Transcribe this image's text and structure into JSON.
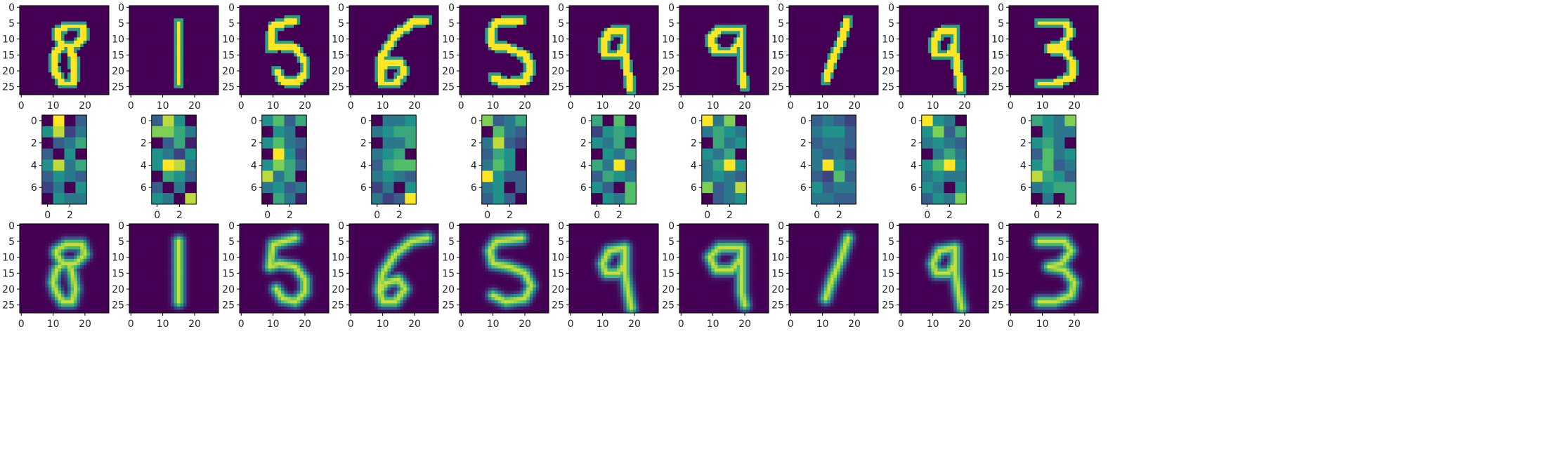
{
  "figure": {
    "title": "",
    "rows": [
      "original-images",
      "latent-codes",
      "reconstructed-images"
    ]
  },
  "colors": {
    "viridis_stops": [
      "#440154",
      "#3b528b",
      "#21918c",
      "#5ec962",
      "#fde725"
    ],
    "background": "#ffffff",
    "text": "#262626"
  },
  "chart_data": [
    {
      "type": "heatmap",
      "row": "original",
      "count": 10,
      "image_shape": [
        28,
        28
      ],
      "digits": [
        "8",
        "1",
        "5",
        "6",
        "5",
        "9",
        "9",
        "1",
        "9",
        "3"
      ],
      "xlim": [
        0,
        27
      ],
      "ylim": [
        27,
        0
      ],
      "x_ticks": [
        0,
        10,
        20
      ],
      "x_tick_labels": [
        "0",
        "10",
        "20"
      ],
      "y_ticks": [
        0,
        5,
        10,
        15,
        20,
        25
      ],
      "y_tick_labels": [
        "0",
        "5",
        "10",
        "15",
        "20",
        "25"
      ],
      "colormap": "viridis"
    },
    {
      "type": "heatmap",
      "row": "latent",
      "count": 10,
      "image_shape": [
        8,
        4
      ],
      "xlim": [
        0,
        3
      ],
      "ylim": [
        7,
        0
      ],
      "x_ticks": [
        0,
        2
      ],
      "x_tick_labels": [
        "0",
        "2"
      ],
      "y_ticks": [
        0,
        2,
        4,
        6
      ],
      "y_tick_labels": [
        "0",
        "2",
        "4",
        "6"
      ],
      "colormap": "viridis",
      "values": [
        [
          [
            0.0,
            1.0,
            0.0,
            0.3
          ],
          [
            0.5,
            0.9,
            0.2,
            0.4
          ],
          [
            0.0,
            0.3,
            0.4,
            0.6
          ],
          [
            0.3,
            0.0,
            0.5,
            0.0
          ],
          [
            0.5,
            0.9,
            0.4,
            0.6
          ],
          [
            0.3,
            0.5,
            0.4,
            0.3
          ],
          [
            0.2,
            0.4,
            0.0,
            0.5
          ],
          [
            0.0,
            0.5,
            0.4,
            0.4
          ]
        ],
        [
          [
            0.3,
            0.9,
            0.5,
            0.0
          ],
          [
            0.8,
            0.8,
            0.6,
            0.4
          ],
          [
            0.0,
            0.3,
            0.6,
            0.1
          ],
          [
            0.5,
            0.4,
            0.2,
            0.5
          ],
          [
            0.5,
            1.0,
            0.9,
            0.4
          ],
          [
            0.0,
            0.6,
            0.5,
            0.3
          ],
          [
            0.3,
            0.0,
            0.4,
            0.0
          ],
          [
            0.5,
            0.4,
            0.0,
            0.9
          ]
        ],
        [
          [
            0.5,
            0.7,
            0.3,
            0.6
          ],
          [
            0.0,
            0.5,
            0.4,
            0.0
          ],
          [
            0.5,
            0.7,
            0.4,
            0.3
          ],
          [
            0.0,
            1.0,
            0.5,
            0.2
          ],
          [
            0.5,
            0.8,
            0.6,
            0.3
          ],
          [
            0.9,
            0.4,
            0.6,
            0.0
          ],
          [
            0.4,
            0.5,
            0.3,
            0.4
          ],
          [
            0.0,
            0.6,
            0.4,
            0.1
          ]
        ],
        [
          [
            0.0,
            0.4,
            0.4,
            0.5
          ],
          [
            0.4,
            0.5,
            0.6,
            0.6
          ],
          [
            0.0,
            0.4,
            0.4,
            0.6
          ],
          [
            0.4,
            0.5,
            0.6,
            0.0
          ],
          [
            0.3,
            0.6,
            0.7,
            0.7
          ],
          [
            0.4,
            0.5,
            0.4,
            0.3
          ],
          [
            0.2,
            0.4,
            0.0,
            0.5
          ],
          [
            0.4,
            0.2,
            0.3,
            1.0
          ]
        ],
        [
          [
            0.8,
            0.3,
            0.4,
            0.6
          ],
          [
            0.0,
            0.7,
            0.4,
            0.3
          ],
          [
            0.4,
            0.9,
            0.3,
            0.2
          ],
          [
            0.3,
            0.6,
            0.5,
            0.0
          ],
          [
            0.4,
            0.7,
            0.5,
            0.0
          ],
          [
            1.0,
            0.5,
            0.3,
            0.3
          ],
          [
            0.4,
            0.5,
            0.0,
            0.3
          ],
          [
            0.3,
            0.5,
            0.3,
            0.0
          ]
        ],
        [
          [
            0.6,
            0.0,
            0.7,
            0.0
          ],
          [
            0.2,
            0.5,
            0.6,
            0.5
          ],
          [
            0.5,
            0.4,
            0.6,
            0.0
          ],
          [
            0.0,
            0.5,
            0.4,
            0.6
          ],
          [
            0.6,
            0.4,
            1.0,
            0.3
          ],
          [
            0.3,
            0.6,
            0.5,
            0.4
          ],
          [
            0.5,
            0.3,
            0.0,
            0.7
          ],
          [
            0.0,
            0.5,
            0.4,
            0.7
          ]
        ],
        [
          [
            1.0,
            0.4,
            0.8,
            0.0
          ],
          [
            0.4,
            0.6,
            0.5,
            0.4
          ],
          [
            0.0,
            0.6,
            0.4,
            0.5
          ],
          [
            0.5,
            0.4,
            0.6,
            0.0
          ],
          [
            0.4,
            0.6,
            1.0,
            0.5
          ],
          [
            0.4,
            0.5,
            0.4,
            0.3
          ],
          [
            0.8,
            0.3,
            0.4,
            0.9
          ],
          [
            0.0,
            0.3,
            0.4,
            0.5
          ]
        ],
        [
          [
            0.3,
            0.4,
            0.3,
            0.2
          ],
          [
            0.4,
            0.5,
            0.5,
            0.3
          ],
          [
            0.3,
            0.4,
            0.4,
            0.3
          ],
          [
            0.4,
            0.3,
            0.4,
            0.2
          ],
          [
            0.4,
            1.0,
            0.5,
            0.4
          ],
          [
            0.3,
            0.2,
            0.7,
            0.3
          ],
          [
            0.5,
            0.3,
            0.4,
            0.4
          ],
          [
            0.4,
            0.4,
            0.3,
            0.3
          ]
        ],
        [
          [
            1.0,
            0.5,
            0.4,
            0.0
          ],
          [
            0.5,
            0.8,
            0.3,
            0.6
          ],
          [
            0.4,
            0.5,
            0.4,
            0.3
          ],
          [
            0.0,
            0.4,
            0.6,
            0.4
          ],
          [
            0.5,
            0.7,
            1.0,
            0.5
          ],
          [
            0.4,
            0.5,
            0.4,
            0.4
          ],
          [
            0.5,
            0.4,
            0.0,
            0.5
          ],
          [
            0.3,
            0.5,
            0.4,
            0.8
          ]
        ],
        [
          [
            0.6,
            0.5,
            0.4,
            0.8
          ],
          [
            0.0,
            0.5,
            0.4,
            0.4
          ],
          [
            0.5,
            0.6,
            0.4,
            0.0
          ],
          [
            0.3,
            0.7,
            0.4,
            0.5
          ],
          [
            0.5,
            0.7,
            0.3,
            0.4
          ],
          [
            0.9,
            0.6,
            0.5,
            0.3
          ],
          [
            0.4,
            0.5,
            0.6,
            0.6
          ],
          [
            0.0,
            0.4,
            0.0,
            0.6
          ]
        ]
      ]
    },
    {
      "type": "heatmap",
      "row": "reconstructed",
      "count": 10,
      "image_shape": [
        28,
        28
      ],
      "digits": [
        "8",
        "1",
        "5",
        "6",
        "5",
        "9",
        "9",
        "1",
        "9",
        "3"
      ],
      "xlim": [
        0,
        27
      ],
      "ylim": [
        27,
        0
      ],
      "x_ticks": [
        0,
        10,
        20
      ],
      "x_tick_labels": [
        "0",
        "10",
        "20"
      ],
      "y_ticks": [
        0,
        5,
        10,
        15,
        20,
        25
      ],
      "y_tick_labels": [
        "0",
        "5",
        "10",
        "15",
        "20",
        "25"
      ],
      "colormap": "viridis"
    }
  ]
}
